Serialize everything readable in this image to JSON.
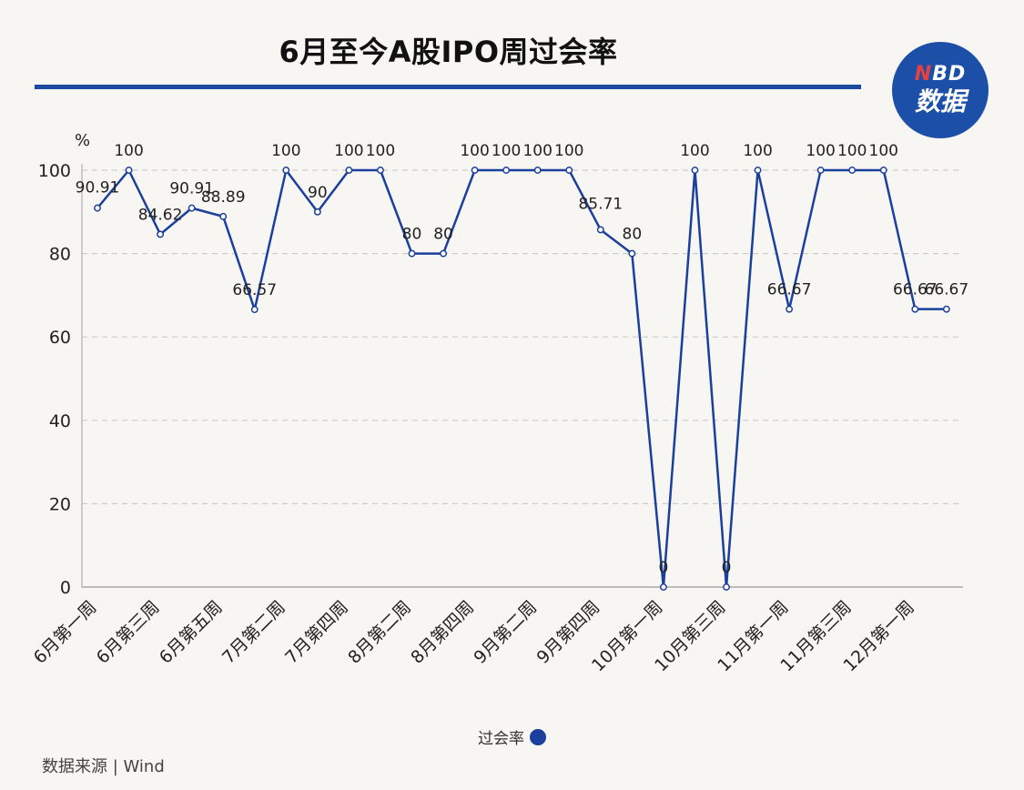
{
  "header": {
    "title": "6月至今A股IPO周过会率",
    "logo_top": "NBD",
    "logo_bottom": "数据"
  },
  "footer": {
    "source": "数据来源 | Wind"
  },
  "colors": {
    "line": "#1b3f9c",
    "rule": "#1b4aa0",
    "grid": "#cccccc"
  },
  "chart_data": {
    "type": "line",
    "ylabel": "%",
    "ylim": [
      0,
      100
    ],
    "yticks": [
      0,
      20,
      40,
      60,
      80,
      100
    ],
    "categories": [
      "6月第一周",
      "",
      "6月第三周",
      "",
      "6月第五周",
      "",
      "7月第二周",
      "",
      "7月第四周",
      "",
      "8月第二周",
      "",
      "8月第四周",
      "",
      "9月第二周",
      "",
      "9月第四周",
      "",
      "10月第一周",
      "",
      "10月第三周",
      "",
      "11月第一周",
      "",
      "11月第三周",
      "",
      "12月第一周",
      ""
    ],
    "series": [
      {
        "name": "过会率",
        "values": [
          90.91,
          100,
          84.62,
          90.91,
          88.89,
          66.57,
          100,
          90,
          100,
          100,
          80,
          80,
          100,
          100,
          100,
          100,
          85.71,
          80,
          0,
          100,
          0,
          100,
          66.67,
          100,
          100,
          100,
          66.67,
          66.67
        ],
        "labels": [
          "90.91",
          "100",
          "84.62",
          "90.91",
          "88.89",
          "66.57",
          "100",
          "90",
          "100",
          "100",
          "80",
          "80",
          "100",
          "100",
          "100",
          "100",
          "85.71",
          "80",
          "0",
          "100",
          "0",
          "100",
          "66.67",
          "100",
          "100",
          "100",
          "66.67",
          "66.67"
        ]
      }
    ],
    "grid": "dashed-horizontal",
    "legend": "bottom-center"
  }
}
